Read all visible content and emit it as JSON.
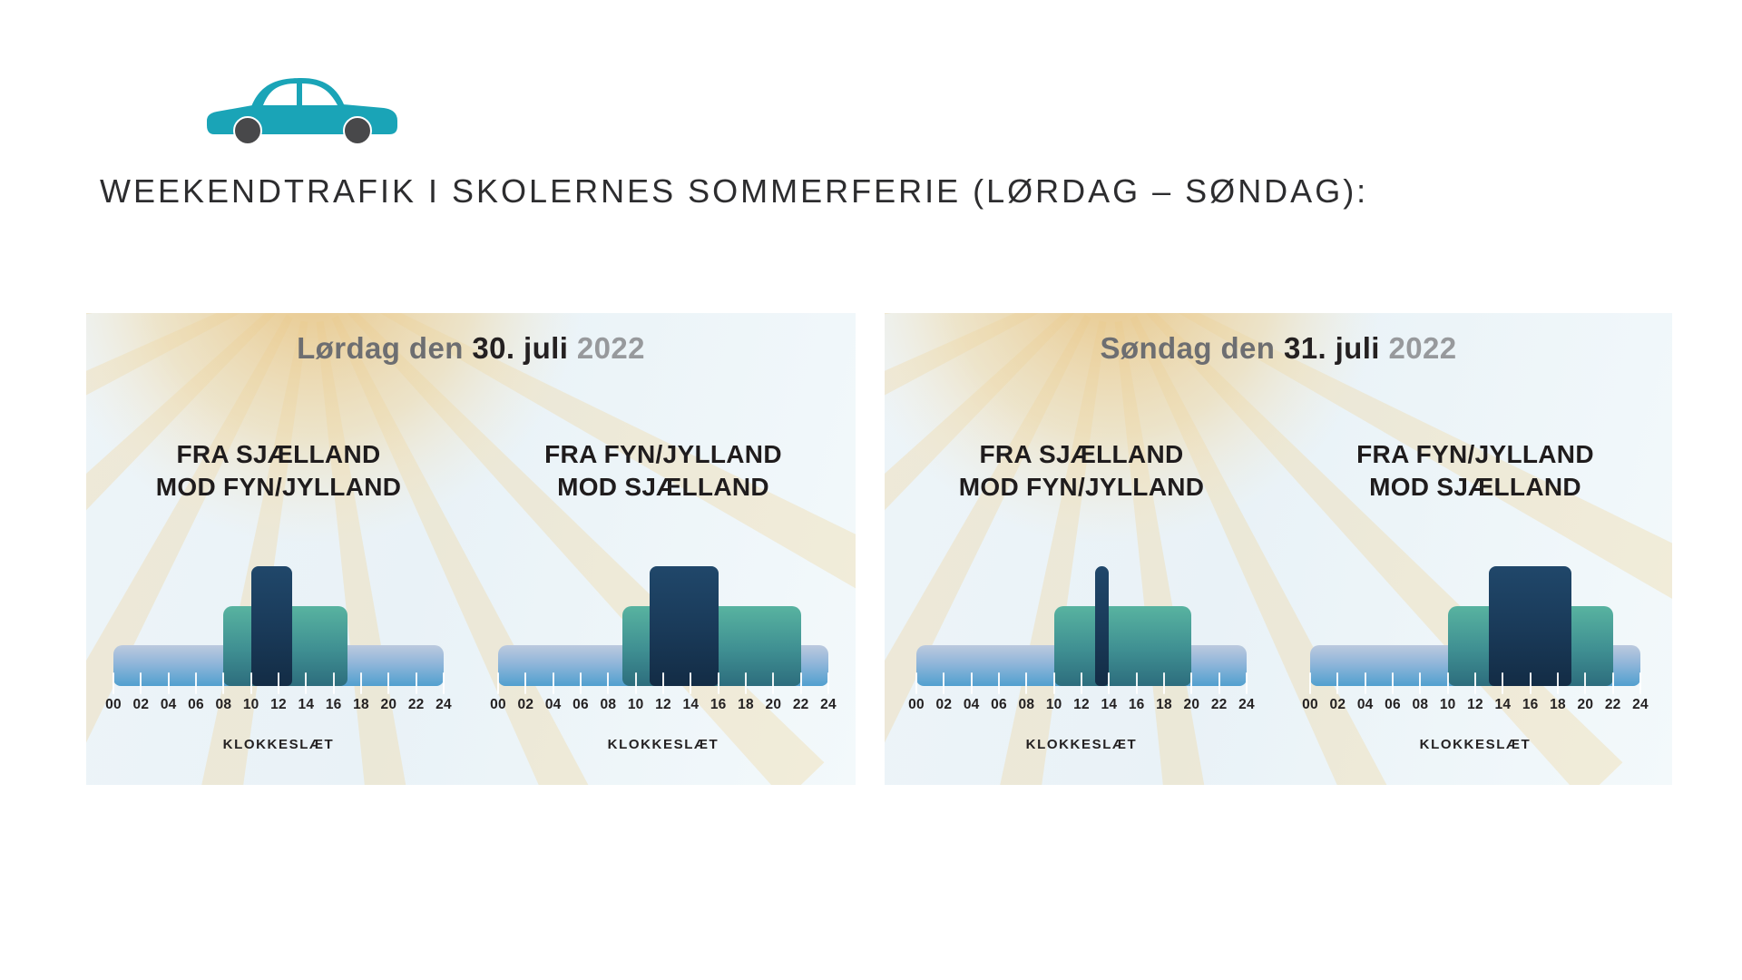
{
  "header": {
    "title": "WEEKENDTRAFIK I SKOLERNES SOMMERFERIE (LØRDAG – SØNDAG):"
  },
  "icons": {
    "header_icon": "car-icon",
    "panel_decoration": "sun-rays-icon"
  },
  "panels": [
    {
      "date_label": {
        "prefix": "Lørdag den",
        "date": "30. juli",
        "year": "2022"
      }
    },
    {
      "date_label": {
        "prefix": "Søndag den",
        "date": "31. juli",
        "year": "2022"
      }
    }
  ],
  "chart_data": [
    {
      "type": "bar",
      "panel_date": "Lørdag den 30. juli 2022",
      "title": "FRA SJÆLLAND MOD FYN/JYLLAND",
      "heading_lines": [
        "FRA SJÆLLAND",
        "MOD FYN/JYLLAND"
      ],
      "xlabel": "KLOKKESLÆT",
      "x_range_hours": [
        0,
        24
      ],
      "x_ticks": [
        "00",
        "02",
        "04",
        "06",
        "08",
        "10",
        "12",
        "14",
        "16",
        "18",
        "20",
        "22",
        "24"
      ],
      "series": [
        {
          "level": "low",
          "from_hour": 0,
          "to_hour": 24
        },
        {
          "level": "medium",
          "from_hour": 8,
          "to_hour": 17
        },
        {
          "level": "high",
          "from_hour": 10,
          "to_hour": 13
        }
      ]
    },
    {
      "type": "bar",
      "panel_date": "Lørdag den 30. juli 2022",
      "title": "FRA FYN/JYLLAND MOD SJÆLLAND",
      "heading_lines": [
        "FRA FYN/JYLLAND",
        "MOD SJÆLLAND"
      ],
      "xlabel": "KLOKKESLÆT",
      "x_range_hours": [
        0,
        24
      ],
      "x_ticks": [
        "00",
        "02",
        "04",
        "06",
        "08",
        "10",
        "12",
        "14",
        "16",
        "18",
        "20",
        "22",
        "24"
      ],
      "series": [
        {
          "level": "low",
          "from_hour": 0,
          "to_hour": 24
        },
        {
          "level": "medium",
          "from_hour": 9,
          "to_hour": 22
        },
        {
          "level": "high",
          "from_hour": 11,
          "to_hour": 16
        }
      ]
    },
    {
      "type": "bar",
      "panel_date": "Søndag den 31. juli 2022",
      "title": "FRA SJÆLLAND MOD FYN/JYLLAND",
      "heading_lines": [
        "FRA SJÆLLAND",
        "MOD FYN/JYLLAND"
      ],
      "xlabel": "KLOKKESLÆT",
      "x_range_hours": [
        0,
        24
      ],
      "x_ticks": [
        "00",
        "02",
        "04",
        "06",
        "08",
        "10",
        "12",
        "14",
        "16",
        "18",
        "20",
        "22",
        "24"
      ],
      "series": [
        {
          "level": "low",
          "from_hour": 0,
          "to_hour": 24
        },
        {
          "level": "medium",
          "from_hour": 10,
          "to_hour": 20
        },
        {
          "level": "high",
          "from_hour": 13,
          "to_hour": 14
        }
      ]
    },
    {
      "type": "bar",
      "panel_date": "Søndag den 31. juli 2022",
      "title": "FRA FYN/JYLLAND MOD SJÆLLAND",
      "heading_lines": [
        "FRA FYN/JYLLAND",
        "MOD SJÆLLAND"
      ],
      "xlabel": "KLOKKESLÆT",
      "x_range_hours": [
        0,
        24
      ],
      "x_ticks": [
        "00",
        "02",
        "04",
        "06",
        "08",
        "10",
        "12",
        "14",
        "16",
        "18",
        "20",
        "22",
        "24"
      ],
      "series": [
        {
          "level": "low",
          "from_hour": 0,
          "to_hour": 24
        },
        {
          "level": "medium",
          "from_hour": 10,
          "to_hour": 22
        },
        {
          "level": "high",
          "from_hour": 13,
          "to_hour": 19
        }
      ]
    }
  ],
  "colors": {
    "bar_low_top": "#bccade",
    "bar_low_bottom": "#51a0cf",
    "bar_medium_top": "#58b3a0",
    "bar_medium_bottom": "#2d6d7d",
    "bar_high_top": "#20476a",
    "bar_high_bottom": "#132c45",
    "car_body": "#1aa4b7",
    "car_wheel": "#48484a",
    "title_text": "#2d2d2f",
    "date_prefix": "#6d6e71",
    "date_strong": "#242021",
    "date_year": "#97999c",
    "sun_core": "#e8c17c",
    "sun_ray": "#eed7a4",
    "panel_bg": "#edf4f8"
  }
}
